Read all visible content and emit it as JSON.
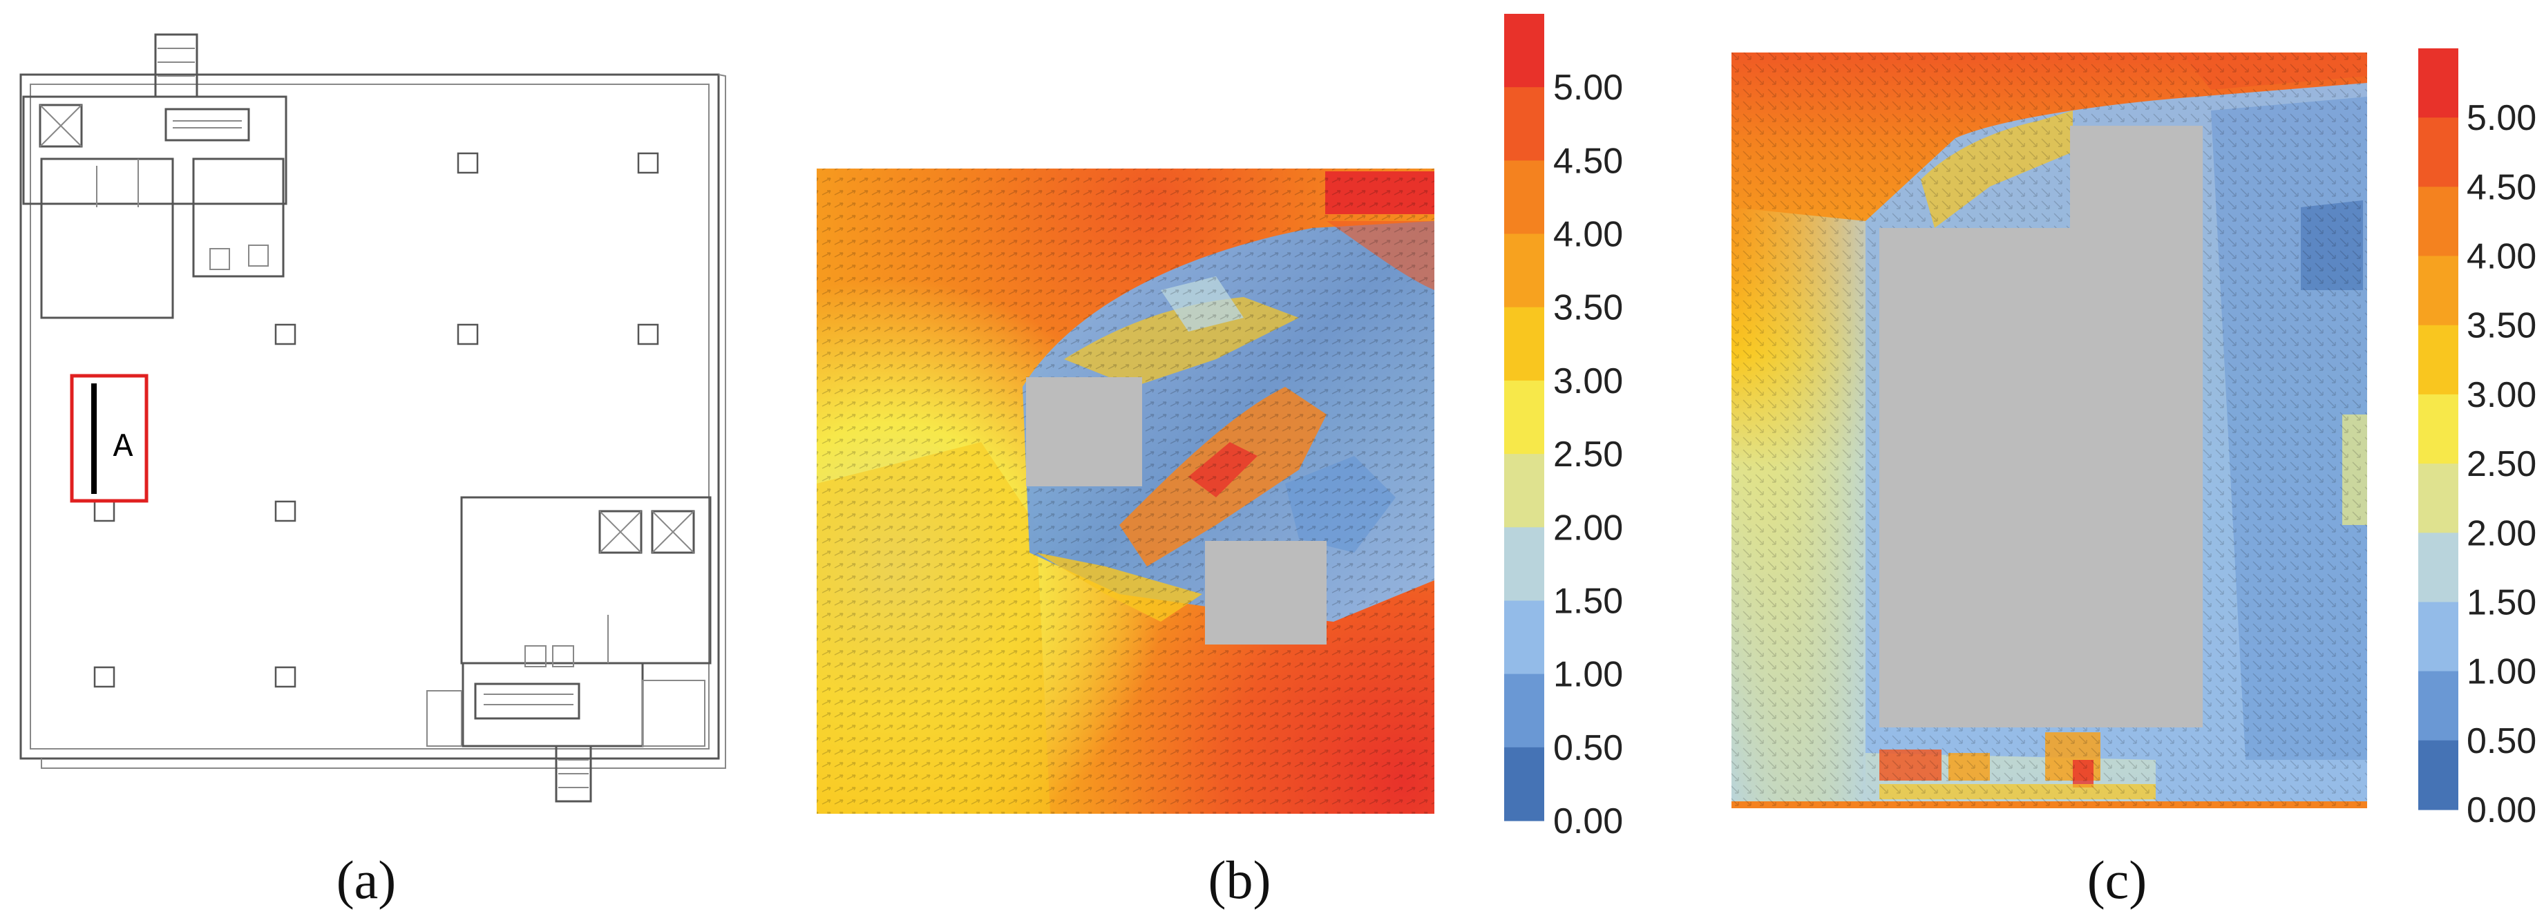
{
  "panels": [
    {
      "id": "a",
      "caption": "(a)",
      "marker_label": "A"
    },
    {
      "id": "b",
      "caption": "(b)"
    },
    {
      "id": "c",
      "caption": "(c)"
    }
  ],
  "colors": {
    "red_marker": "#e02020",
    "obstacle": "#bcbcbc"
  },
  "legend": {
    "labels": [
      "5.00",
      "4.50",
      "4.00",
      "3.50",
      "3.00",
      "2.50",
      "2.00",
      "1.50",
      "1.00",
      "0.50",
      "0.00"
    ],
    "bands": [
      "#e8322a",
      "#f05a24",
      "#f4821f",
      "#f7a21f",
      "#f9c61f",
      "#f7e84a",
      "#dfe28f",
      "#b9d4dc",
      "#93bbe8",
      "#6a98d4",
      "#4573b5"
    ]
  }
}
